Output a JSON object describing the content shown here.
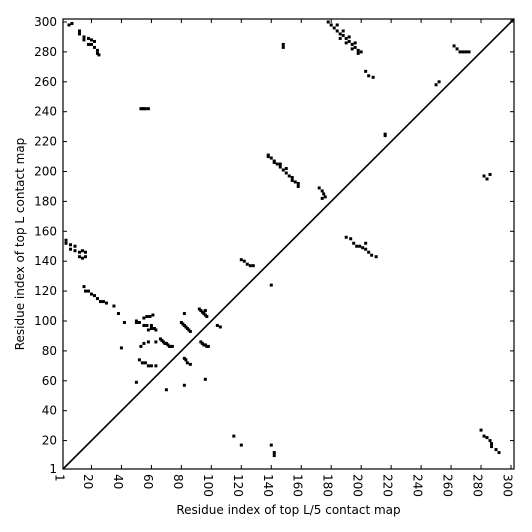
{
  "chart_data": {
    "type": "scatter",
    "title": "",
    "xlabel": "Residue index of top L/5 contact map",
    "ylabel": "Residue index of top L contact map",
    "xlim": [
      1,
      302
    ],
    "ylim": [
      1,
      302
    ],
    "xticks": [
      1,
      20,
      40,
      60,
      80,
      100,
      120,
      140,
      160,
      180,
      200,
      220,
      240,
      260,
      280,
      300
    ],
    "yticks": [
      1,
      20,
      40,
      60,
      80,
      100,
      120,
      140,
      160,
      180,
      200,
      220,
      240,
      260,
      280,
      300
    ],
    "diagonal": true,
    "grid": false,
    "series": [
      {
        "values_note": "",
        "points": [
          [
            5,
            298
          ],
          [
            7,
            299
          ],
          [
            12,
            294
          ],
          [
            12,
            292
          ],
          [
            15,
            290
          ],
          [
            15,
            288
          ],
          [
            18,
            289
          ],
          [
            18,
            285
          ],
          [
            20,
            288
          ],
          [
            20,
            285
          ],
          [
            22,
            287
          ],
          [
            22,
            283
          ],
          [
            24,
            281
          ],
          [
            24,
            279
          ],
          [
            25,
            278
          ],
          [
            53,
            242
          ],
          [
            54,
            242
          ],
          [
            55,
            242
          ],
          [
            56,
            242
          ],
          [
            58,
            242
          ],
          [
            3,
            154
          ],
          [
            3,
            152
          ],
          [
            6,
            151
          ],
          [
            6,
            148
          ],
          [
            9,
            150
          ],
          [
            9,
            147
          ],
          [
            12,
            146
          ],
          [
            12,
            143
          ],
          [
            14,
            147
          ],
          [
            14,
            142
          ],
          [
            16,
            146
          ],
          [
            16,
            143
          ],
          [
            15,
            123
          ],
          [
            16,
            120
          ],
          [
            18,
            120
          ],
          [
            20,
            118
          ],
          [
            22,
            117
          ],
          [
            24,
            115
          ],
          [
            26,
            113
          ],
          [
            28,
            113
          ],
          [
            30,
            112
          ],
          [
            35,
            110
          ],
          [
            38,
            105
          ],
          [
            40,
            82
          ],
          [
            42,
            99
          ],
          [
            50,
            100
          ],
          [
            50,
            99
          ],
          [
            52,
            99
          ],
          [
            53,
            83
          ],
          [
            55,
            85
          ],
          [
            55,
            97
          ],
          [
            57,
            97
          ],
          [
            58,
            86
          ],
          [
            58,
            94
          ],
          [
            60,
            97
          ],
          [
            60,
            95
          ],
          [
            62,
            95
          ],
          [
            63,
            94
          ],
          [
            63,
            86
          ],
          [
            55,
            102
          ],
          [
            57,
            103
          ],
          [
            59,
            103
          ],
          [
            61,
            104
          ],
          [
            52,
            74
          ],
          [
            54,
            72
          ],
          [
            56,
            72
          ],
          [
            58,
            70
          ],
          [
            60,
            70
          ],
          [
            63,
            70
          ],
          [
            66,
            88
          ],
          [
            67,
            87
          ],
          [
            68,
            86
          ],
          [
            69,
            85
          ],
          [
            70,
            85
          ],
          [
            71,
            84
          ],
          [
            72,
            83
          ],
          [
            73,
            83
          ],
          [
            74,
            83
          ],
          [
            80,
            99
          ],
          [
            81,
            98
          ],
          [
            82,
            97
          ],
          [
            83,
            96
          ],
          [
            84,
            95
          ],
          [
            85,
            94
          ],
          [
            86,
            93
          ],
          [
            82,
            105
          ],
          [
            82,
            75
          ],
          [
            83,
            74
          ],
          [
            84,
            72
          ],
          [
            86,
            71
          ],
          [
            82,
            57
          ],
          [
            70,
            54
          ],
          [
            50,
            59
          ],
          [
            92,
            108
          ],
          [
            93,
            107
          ],
          [
            94,
            106
          ],
          [
            95,
            105
          ],
          [
            96,
            104
          ],
          [
            96,
            107
          ],
          [
            97,
            103
          ],
          [
            93,
            86
          ],
          [
            94,
            85
          ],
          [
            95,
            84
          ],
          [
            96,
            84
          ],
          [
            97,
            83
          ],
          [
            98,
            83
          ],
          [
            96,
            61
          ],
          [
            104,
            97
          ],
          [
            106,
            96
          ],
          [
            120,
            141
          ],
          [
            122,
            140
          ],
          [
            124,
            138
          ],
          [
            126,
            137
          ],
          [
            128,
            137
          ],
          [
            115,
            23
          ],
          [
            120,
            17
          ],
          [
            140,
            124
          ],
          [
            140,
            17
          ],
          [
            142,
            12
          ],
          [
            142,
            10
          ],
          [
            138,
            211
          ],
          [
            140,
            209
          ],
          [
            142,
            207
          ],
          [
            144,
            205
          ],
          [
            146,
            203
          ],
          [
            148,
            201
          ],
          [
            150,
            199
          ],
          [
            152,
            197
          ],
          [
            154,
            196
          ],
          [
            156,
            193
          ],
          [
            158,
            190
          ],
          [
            158,
            192
          ],
          [
            138,
            210
          ],
          [
            142,
            206
          ],
          [
            146,
            205
          ],
          [
            150,
            202
          ],
          [
            154,
            194
          ],
          [
            172,
            189
          ],
          [
            174,
            187
          ],
          [
            175,
            185
          ],
          [
            176,
            183
          ],
          [
            174,
            182
          ],
          [
            148,
            283
          ],
          [
            148,
            285
          ],
          [
            178,
            300
          ],
          [
            180,
            298
          ],
          [
            182,
            296
          ],
          [
            184,
            294
          ],
          [
            186,
            292
          ],
          [
            188,
            291
          ],
          [
            190,
            289
          ],
          [
            192,
            287
          ],
          [
            194,
            285
          ],
          [
            196,
            283
          ],
          [
            198,
            281
          ],
          [
            198,
            279
          ],
          [
            200,
            280
          ],
          [
            184,
            298
          ],
          [
            188,
            294
          ],
          [
            192,
            290
          ],
          [
            196,
            286
          ],
          [
            186,
            289
          ],
          [
            190,
            286
          ],
          [
            194,
            282
          ],
          [
            190,
            156
          ],
          [
            193,
            155
          ],
          [
            195,
            152
          ],
          [
            197,
            150
          ],
          [
            199,
            150
          ],
          [
            201,
            149
          ],
          [
            203,
            148
          ],
          [
            205,
            146
          ],
          [
            207,
            144
          ],
          [
            210,
            143
          ],
          [
            203,
            152
          ],
          [
            216,
            225
          ],
          [
            216,
            224
          ],
          [
            203,
            267
          ],
          [
            205,
            264
          ],
          [
            208,
            263
          ],
          [
            250,
            258
          ],
          [
            252,
            260
          ],
          [
            262,
            284
          ],
          [
            264,
            282
          ],
          [
            266,
            280
          ],
          [
            268,
            280
          ],
          [
            270,
            280
          ],
          [
            272,
            280
          ],
          [
            282,
            197
          ],
          [
            284,
            195
          ],
          [
            286,
            198
          ],
          [
            280,
            27
          ],
          [
            282,
            23
          ],
          [
            284,
            22
          ],
          [
            286,
            20
          ],
          [
            287,
            18
          ],
          [
            287,
            16
          ],
          [
            290,
            14
          ],
          [
            292,
            12
          ]
        ]
      }
    ]
  }
}
